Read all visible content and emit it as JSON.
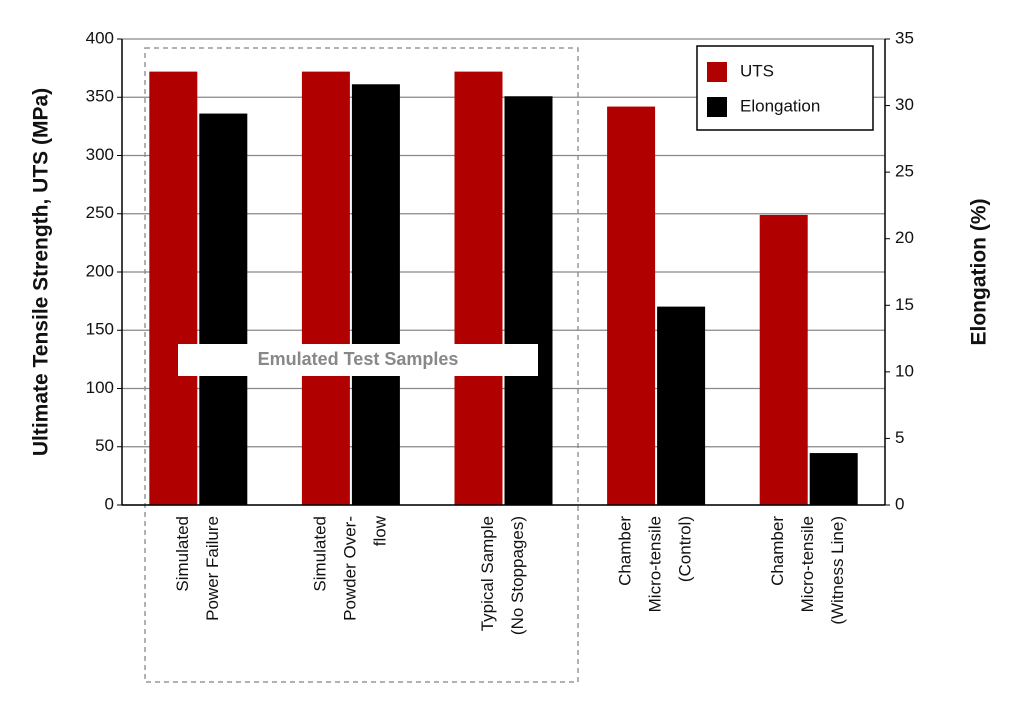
{
  "chart_data": {
    "type": "bar",
    "categories": [
      [
        "Simulated",
        "Power Failure"
      ],
      [
        "Simulated",
        "Powder Over-",
        "flow"
      ],
      [
        "Typical Sample",
        "(No Stoppages)"
      ],
      [
        "Chamber",
        "Micro-tensile",
        "(Control)"
      ],
      [
        "Chamber",
        "Micro-tensile",
        "(Witness Line)"
      ]
    ],
    "series": [
      {
        "name": "UTS",
        "color": "#b00000",
        "values": [
          372,
          372,
          372,
          342,
          249
        ]
      },
      {
        "name": "Elongation",
        "color": "#000000",
        "axis": "y2",
        "values": [
          29.4,
          31.6,
          30.7,
          14.9,
          3.9
        ]
      }
    ],
    "ylabel": "Ultimate Tensile Strength, UTS (MPa)",
    "y2label": "Elongation (%)",
    "ylim": [
      0,
      400
    ],
    "yticks": [
      0,
      50,
      100,
      150,
      200,
      250,
      300,
      350,
      400
    ],
    "y2lim": [
      0,
      35
    ],
    "y2ticks": [
      0,
      5,
      10,
      15,
      20,
      25,
      30,
      35
    ],
    "grid": true,
    "legend": "upper right",
    "annotation": "Emulated Test Samples"
  }
}
